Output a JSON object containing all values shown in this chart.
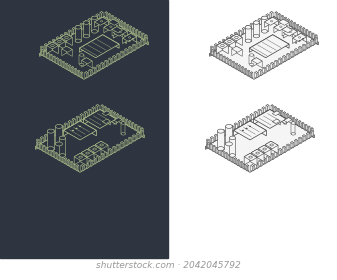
{
  "bg_left": "#2e3540",
  "bg_right": "#ffffff",
  "line_dark": "#b8c890",
  "line_light": "#404040",
  "board_fill_dark": "#2e3540",
  "board_fill_light": "#f5f5f5",
  "board_side_dark": "#252d38",
  "board_side_light": "#e0e0e0",
  "watermark": "shutterstock.com · 2042045792",
  "wm_color": "#999999",
  "wm_size": 6.5
}
